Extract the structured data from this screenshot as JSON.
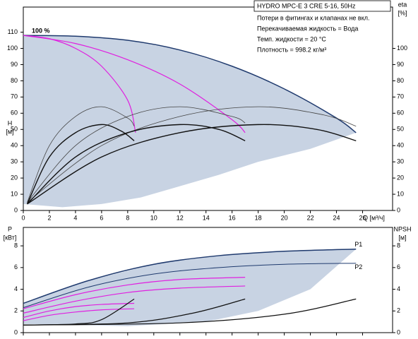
{
  "chart_data": [
    {
      "type": "line",
      "title": "HYDRO MPC-E 3 CRE 5-16, 50Hz",
      "notes": [
        "Потери в фитингах и клапанах не вкл.",
        "Перекачиваемая жидкость = Вода",
        "Темп. жидкости = 20 °C",
        "Плотность = 998.2 кг/м³"
      ],
      "annotations": [
        "100 %"
      ],
      "x_label": "Q [м³/ч]",
      "y_label": [
        "H",
        "[м]"
      ],
      "y2_label": [
        "eta",
        "[%]"
      ],
      "xlim": [
        0,
        28.3
      ],
      "ylim": [
        0,
        125.5
      ],
      "y2lim": [
        0,
        125.5
      ],
      "xticks": [
        0,
        2,
        4,
        6,
        8,
        10,
        12,
        14,
        16,
        18,
        20,
        22,
        24,
        26
      ],
      "yticks": [
        0,
        10,
        20,
        30,
        40,
        50,
        60,
        70,
        80,
        90,
        100,
        110
      ],
      "y2ticks": [
        0,
        10,
        20,
        30,
        40,
        50,
        60,
        70,
        80,
        90,
        100
      ],
      "regions": [
        {
          "color": "#c8d3e3",
          "x": [
            0,
            4,
            8,
            12,
            16,
            20,
            24,
            25.5,
            22,
            18,
            15,
            12,
            9,
            6,
            3,
            0
          ],
          "values": [
            108,
            107.5,
            105,
            99,
            89,
            75,
            57,
            48,
            38,
            30,
            22,
            15,
            8,
            4,
            2,
            4
          ]
        }
      ],
      "series": [
        {
          "color": "#1f3a6e",
          "width": 1.5,
          "x": [
            0,
            4,
            8,
            12,
            16,
            20,
            24,
            25.5
          ],
          "values": [
            108,
            107.5,
            105,
            99,
            89,
            75,
            57,
            48
          ]
        },
        {
          "color": "#e020e0",
          "width": 1.2,
          "x": [
            0,
            2,
            4,
            6,
            8,
            8.6
          ],
          "values": [
            108,
            106,
            100,
            89,
            68,
            48
          ]
        },
        {
          "color": "#e020e0",
          "width": 1.2,
          "x": [
            0,
            4,
            8,
            12,
            16,
            17
          ],
          "values": [
            108,
            103,
            93,
            78,
            56,
            48
          ]
        },
        {
          "color": "#444444",
          "width": 0.8,
          "axis": "y2",
          "x": [
            0.3,
            2,
            4,
            6,
            8,
            8.5
          ],
          "values": [
            5,
            40,
            58,
            64,
            57,
            52
          ]
        },
        {
          "color": "#444444",
          "width": 0.8,
          "axis": "y2",
          "x": [
            0.3,
            4,
            8,
            12,
            16,
            17
          ],
          "values": [
            5,
            40,
            58,
            64,
            58,
            54
          ]
        },
        {
          "color": "#444444",
          "width": 0.8,
          "axis": "y2",
          "x": [
            0.3,
            6,
            12,
            18,
            23,
            25.5
          ],
          "values": [
            5,
            40,
            58,
            64,
            59,
            52
          ]
        },
        {
          "color": "#111111",
          "width": 1.4,
          "axis": "y2",
          "x": [
            0.3,
            2,
            4,
            6,
            7.5,
            8.5
          ],
          "values": [
            4,
            33,
            48,
            53,
            49,
            43
          ]
        },
        {
          "color": "#111111",
          "width": 1.4,
          "axis": "y2",
          "x": [
            0.3,
            4,
            8,
            12,
            15,
            17
          ],
          "values": [
            4,
            33,
            48,
            53,
            50,
            43
          ]
        },
        {
          "color": "#111111",
          "width": 1.4,
          "axis": "y2",
          "x": [
            0.3,
            6,
            12,
            18,
            22.5,
            25.5
          ],
          "values": [
            4,
            33,
            48,
            53,
            50,
            43
          ]
        }
      ]
    },
    {
      "type": "line",
      "y_label": [
        "P",
        "[кВт]"
      ],
      "y2_label": [
        "NPSH",
        "[м]"
      ],
      "xlim": [
        0,
        28.3
      ],
      "ylim": [
        0,
        9.7
      ],
      "y2lim": [
        0,
        9.7
      ],
      "xticks": [
        0,
        2,
        4,
        6,
        8,
        10,
        12,
        14,
        16,
        18,
        20,
        22,
        24,
        26
      ],
      "yticks": [
        0,
        2,
        4,
        6,
        8
      ],
      "y2ticks": [
        0,
        2,
        4,
        6,
        8
      ],
      "regions": [
        {
          "color": "#c8d3e3",
          "x": [
            0,
            5,
            10,
            15,
            20,
            25.5,
            22,
            18,
            14,
            8,
            0
          ],
          "values": [
            2.7,
            4.8,
            6.3,
            7.1,
            7.5,
            7.7,
            4,
            2,
            1,
            0.6,
            0.8
          ]
        }
      ],
      "series": [
        {
          "name": "P1",
          "color": "#1f3a6e",
          "width": 1.5,
          "x": [
            0,
            5,
            10,
            15,
            20,
            25.5
          ],
          "values": [
            2.7,
            4.8,
            6.3,
            7.1,
            7.5,
            7.7
          ]
        },
        {
          "name": "P2",
          "color": "#1f3a6e",
          "width": 1,
          "x": [
            0,
            5,
            10,
            15,
            20,
            25.5
          ],
          "values": [
            2.3,
            4.2,
            5.4,
            6,
            6.3,
            6.4
          ]
        },
        {
          "color": "#e020e0",
          "width": 1.2,
          "x": [
            0,
            4,
            8,
            12,
            17
          ],
          "values": [
            2.2,
            3.5,
            4.4,
            4.9,
            5.1
          ]
        },
        {
          "color": "#e020e0",
          "width": 1.2,
          "x": [
            0,
            4,
            8,
            12,
            17
          ],
          "values": [
            1.8,
            2.9,
            3.7,
            4.1,
            4.3
          ]
        },
        {
          "color": "#e020e0",
          "width": 1.2,
          "x": [
            0,
            2,
            4,
            6,
            8.5
          ],
          "values": [
            1.4,
            2,
            2.4,
            2.6,
            2.7
          ]
        },
        {
          "color": "#e020e0",
          "width": 1.2,
          "x": [
            0,
            2,
            4,
            6,
            8.5
          ],
          "values": [
            1.1,
            1.6,
            1.9,
            2.1,
            2.2
          ]
        },
        {
          "color": "#111111",
          "width": 1.2,
          "axis": "y2",
          "x": [
            0,
            4,
            6,
            8.5
          ],
          "values": [
            0.7,
            0.8,
            1.2,
            3.1
          ]
        },
        {
          "color": "#111111",
          "width": 1.2,
          "axis": "y2",
          "x": [
            0,
            8,
            13,
            17
          ],
          "values": [
            0.7,
            0.9,
            1.8,
            3.1
          ]
        },
        {
          "color": "#111111",
          "width": 1.2,
          "axis": "y2",
          "x": [
            0,
            12,
            20,
            25.5
          ],
          "values": [
            0.7,
            0.9,
            1.7,
            3.1
          ]
        }
      ]
    }
  ]
}
